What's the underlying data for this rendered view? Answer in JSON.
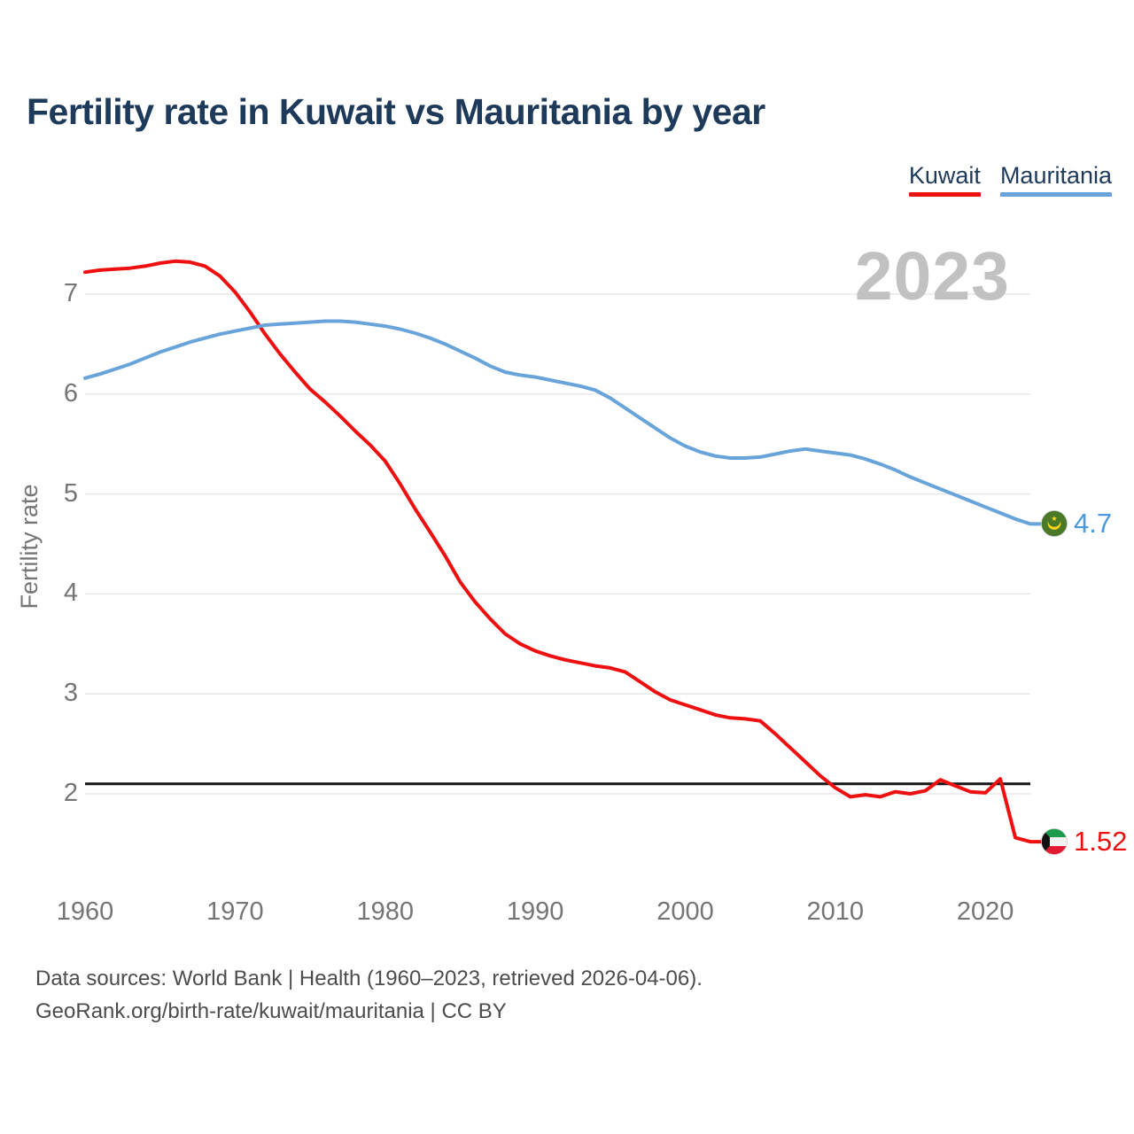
{
  "page": {
    "title": "Fertility rate in Kuwait vs Mauritania by year",
    "footer_line1": "Data sources: World Bank | Health (1960–2023, retrieved 2026-04-06).",
    "footer_line2": "GeoRank.org/birth-rate/kuwait/mauritania | CC BY"
  },
  "chart_data": {
    "type": "line",
    "title": "Fertility rate in Kuwait vs Mauritania by year",
    "ylabel": "Fertility rate",
    "xlabel": "",
    "watermark": "2023",
    "grid": "horizontal",
    "legend_position": "top-right",
    "xlim": [
      1960,
      2023
    ],
    "ylim": [
      1.3,
      7.5
    ],
    "yticks": [
      2,
      3,
      4,
      5,
      6,
      7
    ],
    "xticks": [
      1960,
      1970,
      1980,
      1990,
      2000,
      2010,
      2020
    ],
    "reference_line": {
      "value": 2.1,
      "color": "#161616"
    },
    "axis_text_color": "#757575",
    "gridline_color": "#e8e8e8",
    "x": [
      1960,
      1961,
      1962,
      1963,
      1964,
      1965,
      1966,
      1967,
      1968,
      1969,
      1970,
      1971,
      1972,
      1973,
      1974,
      1975,
      1976,
      1977,
      1978,
      1979,
      1980,
      1981,
      1982,
      1983,
      1984,
      1985,
      1986,
      1987,
      1988,
      1989,
      1990,
      1991,
      1992,
      1993,
      1994,
      1995,
      1996,
      1997,
      1998,
      1999,
      2000,
      2001,
      2002,
      2003,
      2004,
      2005,
      2006,
      2007,
      2008,
      2009,
      2010,
      2011,
      2012,
      2013,
      2014,
      2015,
      2016,
      2017,
      2018,
      2019,
      2020,
      2021,
      2022,
      2023
    ],
    "series": [
      {
        "name": "Kuwait",
        "color": "#ee1010",
        "label_color": "#ee1010",
        "end_label": "1.52",
        "flag": "kuwait-flag",
        "values": [
          7.22,
          7.24,
          7.25,
          7.26,
          7.28,
          7.31,
          7.33,
          7.32,
          7.28,
          7.18,
          7.02,
          6.82,
          6.6,
          6.4,
          6.22,
          6.05,
          5.92,
          5.78,
          5.63,
          5.49,
          5.33,
          5.1,
          4.85,
          4.62,
          4.38,
          4.12,
          3.92,
          3.75,
          3.6,
          3.5,
          3.43,
          3.38,
          3.34,
          3.31,
          3.28,
          3.26,
          3.22,
          3.12,
          3.02,
          2.94,
          2.89,
          2.84,
          2.79,
          2.76,
          2.75,
          2.73,
          2.6,
          2.46,
          2.32,
          2.18,
          2.06,
          1.97,
          1.99,
          1.97,
          2.02,
          2.0,
          2.03,
          2.14,
          2.08,
          2.02,
          2.01,
          2.15,
          1.56,
          1.52
        ]
      },
      {
        "name": "Mauritania",
        "color": "#68a4da",
        "label_color": "#4a99dd",
        "end_label": "4.7",
        "flag": "mauritania-flag",
        "values": [
          6.16,
          6.2,
          6.25,
          6.3,
          6.36,
          6.42,
          6.47,
          6.52,
          6.56,
          6.6,
          6.63,
          6.66,
          6.69,
          6.7,
          6.71,
          6.72,
          6.73,
          6.73,
          6.72,
          6.7,
          6.68,
          6.65,
          6.61,
          6.56,
          6.5,
          6.43,
          6.36,
          6.28,
          6.22,
          6.19,
          6.17,
          6.14,
          6.11,
          6.08,
          6.04,
          5.96,
          5.86,
          5.76,
          5.66,
          5.56,
          5.48,
          5.42,
          5.38,
          5.36,
          5.36,
          5.37,
          5.4,
          5.43,
          5.45,
          5.43,
          5.41,
          5.39,
          5.35,
          5.3,
          5.24,
          5.17,
          5.11,
          5.05,
          4.99,
          4.93,
          4.87,
          4.81,
          4.75,
          4.7
        ]
      }
    ]
  }
}
